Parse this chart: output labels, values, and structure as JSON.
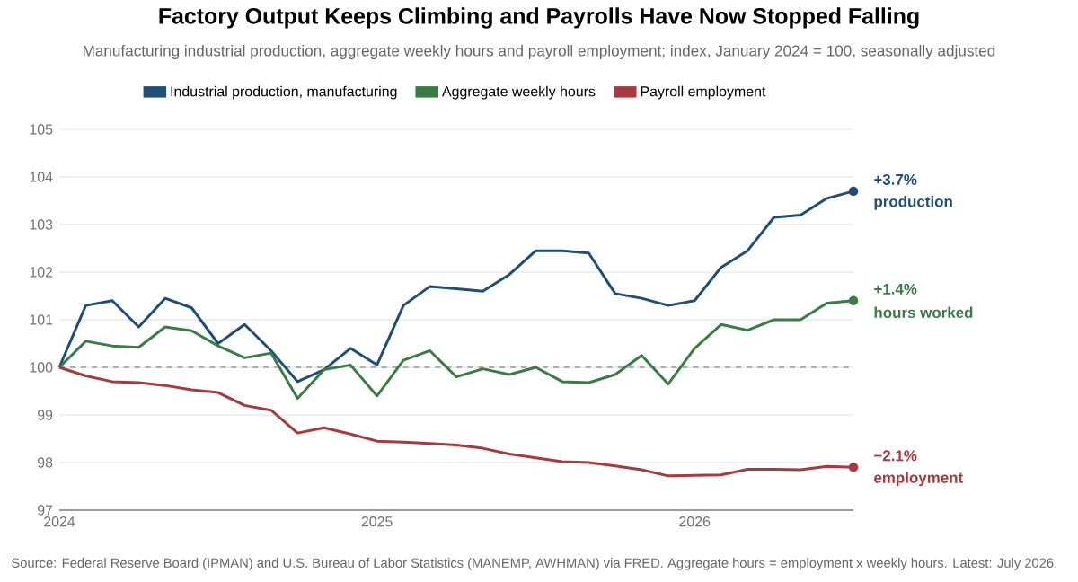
{
  "chart_data": {
    "type": "line",
    "title": "Factory Output Keeps Climbing and Payrolls Have Now Stopped Falling",
    "subtitle": "Manufacturing industrial production, aggregate weekly hours and payroll employment; index, January 2024 = 100, seasonally adjusted",
    "x": [
      "2024-01",
      "2024-02",
      "2024-03",
      "2024-04",
      "2024-05",
      "2024-06",
      "2024-07",
      "2024-08",
      "2024-09",
      "2024-10",
      "2024-11",
      "2024-12",
      "2025-01",
      "2025-02",
      "2025-03",
      "2025-04",
      "2025-05",
      "2025-06",
      "2025-07",
      "2025-08",
      "2025-09",
      "2025-10",
      "2025-11",
      "2025-12",
      "2026-01",
      "2026-02",
      "2026-03",
      "2026-04",
      "2026-05",
      "2026-06",
      "2026-07"
    ],
    "series": [
      {
        "name": "Industrial production, manufacturing",
        "color": "#1f4e79",
        "values": [
          100,
          101.3,
          101.4,
          100.85,
          101.45,
          101.25,
          100.5,
          100.9,
          100.35,
          99.7,
          99.95,
          100.4,
          100.05,
          101.3,
          101.7,
          101.65,
          101.6,
          101.95,
          102.45,
          102.45,
          102.4,
          101.55,
          101.45,
          101.3,
          101.4,
          102.1,
          102.45,
          103.15,
          103.2,
          103.55,
          103.7
        ]
      },
      {
        "name": "Aggregate weekly hours",
        "color": "#3a7d44",
        "values": [
          100,
          100.55,
          100.45,
          100.42,
          100.85,
          100.77,
          100.45,
          100.2,
          100.3,
          99.35,
          99.95,
          100.05,
          99.4,
          100.15,
          100.35,
          99.8,
          99.97,
          99.85,
          100.0,
          99.7,
          99.68,
          99.85,
          100.25,
          99.65,
          100.4,
          100.9,
          100.78,
          101.0,
          101.0,
          101.35,
          101.4
        ]
      },
      {
        "name": "Payroll employment",
        "color": "#a83a3f",
        "values": [
          100,
          99.82,
          99.7,
          99.68,
          99.62,
          99.53,
          99.47,
          99.2,
          99.1,
          98.62,
          98.73,
          98.6,
          98.45,
          98.43,
          98.4,
          98.37,
          98.3,
          98.18,
          98.1,
          98.02,
          98.0,
          97.93,
          97.85,
          97.72,
          97.73,
          97.74,
          97.86,
          97.86,
          97.85,
          97.92,
          97.9
        ]
      }
    ],
    "xlim": [
      "2024-01",
      "2026-07"
    ],
    "xticks": [
      {
        "value": "2024-01",
        "label": "2024"
      },
      {
        "value": "2025-01",
        "label": "2025"
      },
      {
        "value": "2026-01",
        "label": "2026"
      }
    ],
    "ylim": [
      97,
      105
    ],
    "yticks": [
      97,
      98,
      99,
      100,
      101,
      102,
      103,
      104,
      105
    ],
    "grid": "y",
    "legend": "top",
    "marker": "none",
    "line_style": "solid",
    "ref_lines": [
      {
        "axis": "y",
        "value": 100,
        "color": "#999999",
        "line_style": "dashed"
      }
    ],
    "annotations": [
      {
        "text": "+3.7%",
        "x": "2026-07",
        "y": 103.7
      },
      {
        "text": "production",
        "x": "2026-07",
        "y": 103.7
      },
      {
        "text": "+1.4%",
        "x": "2026-07",
        "y": 101.4
      },
      {
        "text": "hours worked",
        "x": "2026-07",
        "y": 101.4
      },
      {
        "text": "−2.1%",
        "x": "2026-07",
        "y": 97.9
      },
      {
        "text": "employment",
        "x": "2026-07",
        "y": 97.9
      },
      "Source: Federal Reserve Board (IPMAN) and U.S. Bureau of Labor Statistics (MANEMP, AWHMAN) via FRED. Aggregate hours = employment x weekly hours. Latest: July 2026."
    ]
  }
}
